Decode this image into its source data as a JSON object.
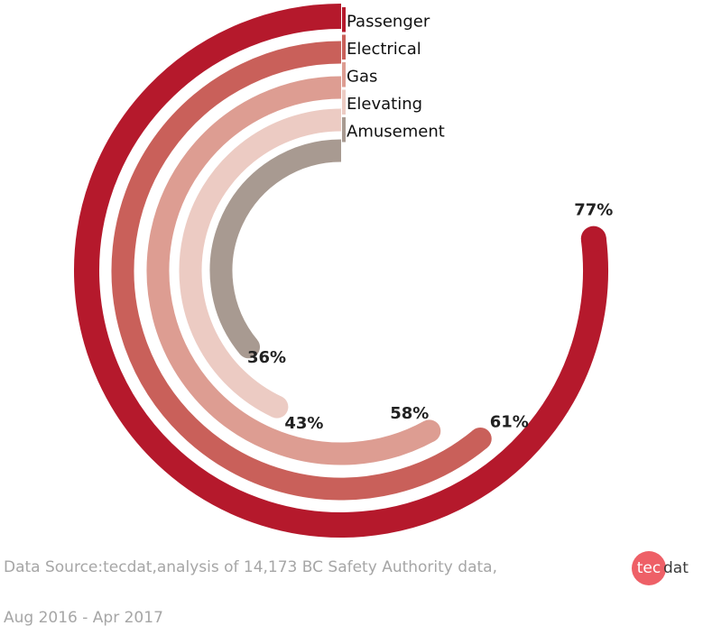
{
  "chart_data": {
    "type": "radial-bar",
    "series": [
      {
        "name": "Passenger",
        "value": 77,
        "label": "77%",
        "color": "#b5192c"
      },
      {
        "name": "Electrical",
        "value": 61,
        "label": "61%",
        "color": "#c9605a"
      },
      {
        "name": "Gas",
        "value": 58,
        "label": "58%",
        "color": "#dd9d92"
      },
      {
        "name": "Elevating",
        "value": 43,
        "label": "43%",
        "color": "#eccbc3"
      },
      {
        "name": "Amusement",
        "value": 36,
        "label": "36%",
        "color": "#a89a91"
      }
    ],
    "max": 100,
    "start_angle": "top",
    "direction": "counter-clockwise",
    "legend_position": "top-center"
  },
  "source": {
    "line1": "Data Source:tecdat,analysis of 14,173 BC Safety Authority data,",
    "line2": "Aug 2016 - Apr 2017"
  },
  "logo": {
    "badge": "tec",
    "rest": "dat",
    "badge_color": "#ee6067"
  }
}
